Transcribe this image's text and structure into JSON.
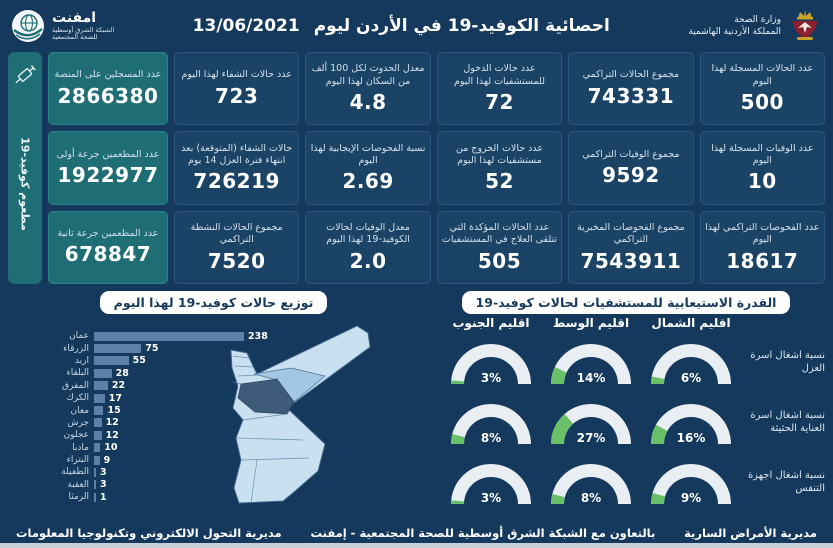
{
  "header": {
    "title": "احصائية الكوفيد-19 في الأردن ليوم",
    "date": "13/06/2021",
    "ministry": "وزارة الصحة",
    "country": "المملكة الأردنية الهاشمية",
    "logo_name": "امفنت",
    "logo_subtitle": "الشبكة الشرق أوسطية\nللصحة المجتمعية"
  },
  "vaccine_sidebar": {
    "strip_label": "مطعوم كوفيد-19",
    "cards": [
      {
        "label": "عدد المسجلين على المنصة",
        "value": "2866380"
      },
      {
        "label": "عدد المطعمين جرعة أولى",
        "value": "1922977"
      },
      {
        "label": "عدد المطعمين جرعة ثانية",
        "value": "678847"
      }
    ]
  },
  "stats_columns": [
    {
      "cards": [
        {
          "label": "عدد الحالات المسجلة لهذا اليوم",
          "value": "500"
        },
        {
          "label": "عدد الوفيات المسجلة لهذا اليوم",
          "value": "10"
        },
        {
          "label": "عدد الفحوصات التراكمي لهذا اليوم",
          "value": "18617"
        }
      ]
    },
    {
      "cards": [
        {
          "label": "مجموع الحالات التراكمي",
          "value": "743331"
        },
        {
          "label": "مجموع الوفيات التراكمي",
          "value": "9592"
        },
        {
          "label": "مجموع الفحوصات المخبرية التراكمي",
          "value": "7543911"
        }
      ]
    },
    {
      "cards": [
        {
          "label": "عدد حالات الدخول للمستشفيات لهذا اليوم",
          "value": "72"
        },
        {
          "label": "عدد حالات الخروج من مستشفيات لهذا اليوم",
          "value": "52"
        },
        {
          "label": "عدد الحالات المؤكدة التي تتلقى العلاج في المستشفيات",
          "value": "505"
        }
      ]
    },
    {
      "cards": [
        {
          "label": "معدل الحدوث لكل 100 ألف من السكان لهذا اليوم",
          "value": "4.8"
        },
        {
          "label": "نسبة الفحوصات الإيجابية لهذا اليوم",
          "value": "2.69"
        },
        {
          "label": "معدل الوفيات لحالات الكوفيد-19 لهذا اليوم",
          "value": "2.0"
        }
      ]
    },
    {
      "cards": [
        {
          "label": "عدد حالات الشفاء لهذا اليوم",
          "value": "723"
        },
        {
          "label": "حالات الشفاء (المتوقعة) بعد انتهاء فترة العزل 14 يوم",
          "value": "726219"
        },
        {
          "label": "مجموع الحالات النشطة التراكمي",
          "value": "7520"
        }
      ]
    }
  ],
  "chart_data": [
    {
      "type": "bar",
      "orientation": "horizontal",
      "title": "توزيع حالات كوفيد-19 لهذا اليوم",
      "categories": [
        "عمان",
        "الزرقاء",
        "اربد",
        "البلقاء",
        "المفرق",
        "الكرك",
        "معان",
        "جرش",
        "عجلون",
        "مادبا",
        "البتراء",
        "الطفيلة",
        "العقبة",
        "الرمثا"
      ],
      "values": [
        238,
        75,
        55,
        28,
        22,
        17,
        15,
        12,
        12,
        10,
        9,
        3,
        3,
        1
      ],
      "xlim": [
        0,
        238
      ],
      "bar_color": "#5d81a6",
      "map_highlight_dark": "عمان",
      "map_highlight_medium": "الزرقاء"
    },
    {
      "type": "gauge",
      "title": "القدرة الاستيعابية للمستشفيات لحالات كوفيد-19",
      "columns": [
        "اقليم الشمال",
        "اقليم الوسط",
        "اقليم الجنوب"
      ],
      "rows": [
        {
          "label": "نسبة اشغال اسرة العزل",
          "values": [
            6,
            14,
            3
          ]
        },
        {
          "label": "نسبة اشغال اسرة العناية الحثيثة",
          "values": [
            16,
            27,
            8
          ]
        },
        {
          "label": "نسبة اشغال اجهزة التنفس",
          "values": [
            9,
            8,
            3
          ]
        }
      ],
      "unit": "%",
      "fill_color": "#6abf69",
      "track_color": "#e9eef3"
    }
  ],
  "footer": {
    "right": "مديرية الأمراض السارية",
    "center": "بالتعاون مع الشبكة الشرق أوسطية للصحة المجتمعية - إمفنت",
    "left": "مديرية التحول الالكتروني وتكنولوجيا المعلومات"
  },
  "colors": {
    "background": "#14395c",
    "card": "#1b4365",
    "teal": "#1f6e76",
    "bar": "#5d81a6",
    "gauge_green": "#6abf69",
    "gauge_track": "#e9eef3",
    "map_light": "#c9e0f1",
    "map_medium": "#a3c6e2",
    "map_dark": "#3d5a78"
  }
}
